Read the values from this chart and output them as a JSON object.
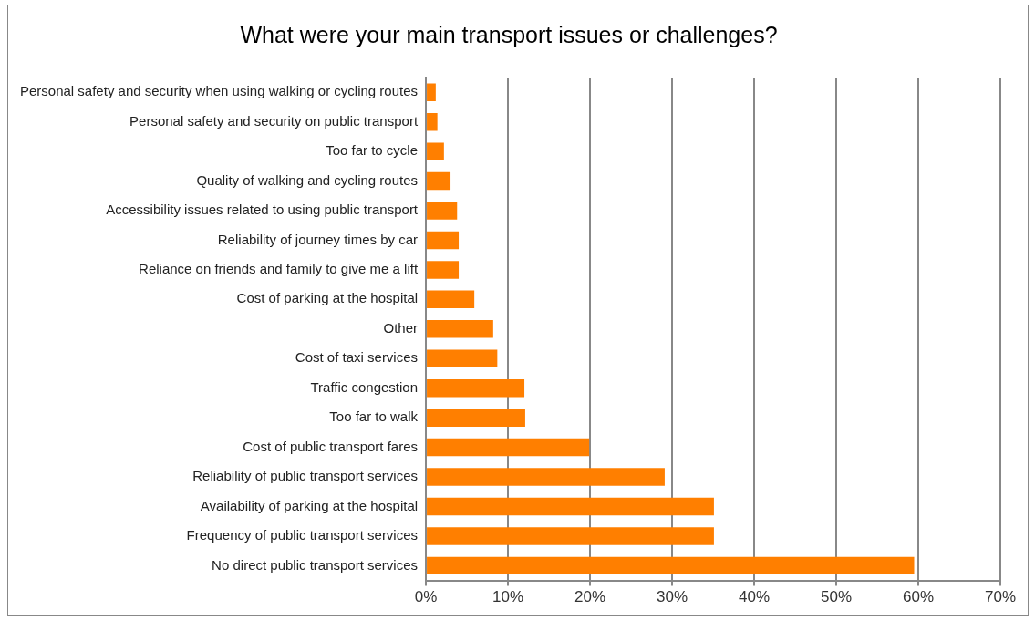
{
  "chart_data": {
    "type": "bar",
    "orientation": "horizontal",
    "title": "What were your main transport issues or challenges?",
    "categories": [
      "Personal safety and security when using walking or cycling routes",
      "Personal safety and security on public transport",
      "Too far to cycle",
      "Quality of walking and cycling routes",
      "Accessibility issues related to using public transport",
      "Reliability of journey times by car",
      "Reliance on friends and family to give me a lift",
      "Cost of parking at the hospital",
      "Other",
      "Cost of taxi services",
      "Traffic congestion",
      "Too far to walk",
      "Cost of public transport fares",
      "Reliability of public transport services",
      "Availability of parking at the hospital",
      "Frequency of public transport services",
      "No direct public transport services"
    ],
    "values": [
      1.2,
      1.4,
      2.2,
      3.0,
      3.8,
      4.0,
      4.0,
      5.9,
      8.2,
      8.7,
      12.0,
      12.1,
      19.9,
      29.1,
      35.1,
      35.1,
      59.5
    ],
    "color": "#ff7f00",
    "xlim": [
      0,
      70
    ],
    "xticks": [
      {
        "value": 0,
        "label": "0%"
      },
      {
        "value": 10,
        "label": "10%"
      },
      {
        "value": 20,
        "label": "20%"
      },
      {
        "value": 30,
        "label": "30%"
      },
      {
        "value": 40,
        "label": "40%"
      },
      {
        "value": 50,
        "label": "50%"
      },
      {
        "value": 60,
        "label": "60%"
      },
      {
        "value": 70,
        "label": "70%"
      }
    ],
    "grid": "x",
    "legend": false
  }
}
